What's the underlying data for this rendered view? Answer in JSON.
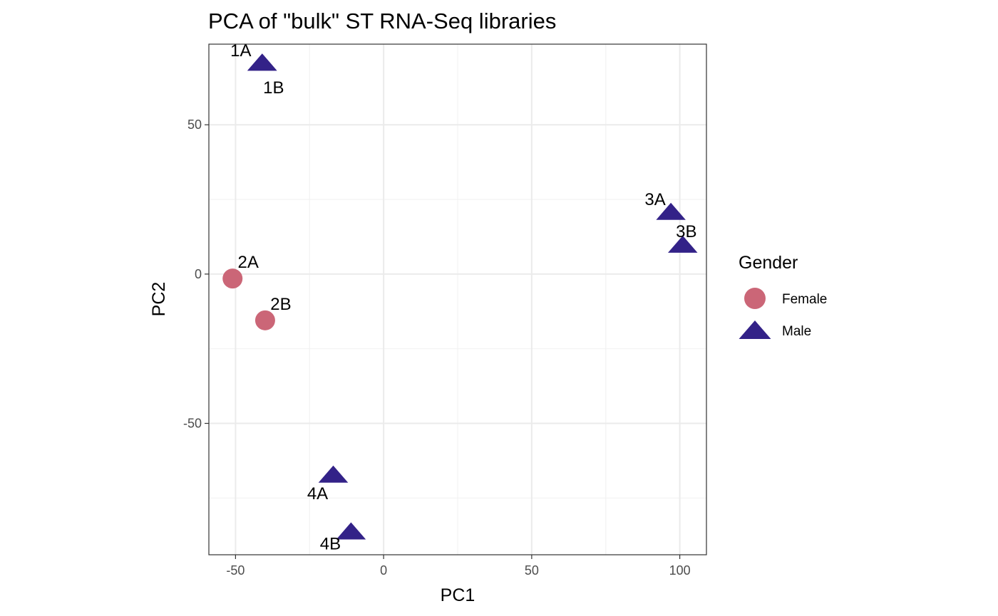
{
  "chart_data": {
    "type": "scatter",
    "title": "PCA of \"bulk\" ST RNA-Seq libraries",
    "xlabel": "PC1",
    "ylabel": "PC2",
    "xlim": [
      -59,
      109
    ],
    "ylim": [
      -94,
      77
    ],
    "x_ticks": [
      -50,
      0,
      50,
      100
    ],
    "x_tick_labels": [
      "-50",
      "0",
      "50",
      "100"
    ],
    "y_ticks": [
      -50,
      0,
      50
    ],
    "y_tick_labels": [
      "-50",
      "0",
      "50"
    ],
    "x_minor_gridlines": [
      -25,
      25,
      75
    ],
    "y_minor_gridlines": [
      -75,
      -25,
      25
    ],
    "grid": true,
    "legend": {
      "title": "Gender",
      "position": "right",
      "entries": [
        {
          "label": "Female",
          "shape": "circle",
          "color": "#cb6677"
        },
        {
          "label": "Male",
          "shape": "triangle",
          "color": "#332288"
        }
      ]
    },
    "series": [
      {
        "name": "Female",
        "shape": "circle",
        "color": "#cb6677",
        "points": [
          {
            "label": "2A",
            "x": -51,
            "y": -1.5
          },
          {
            "label": "2B",
            "x": -40,
            "y": -15.5
          }
        ]
      },
      {
        "name": "Male",
        "shape": "triangle",
        "color": "#332288",
        "points": [
          {
            "label": "1A",
            "x": -41,
            "y": 71
          },
          {
            "label": "1B",
            "x": -41,
            "y": 71
          },
          {
            "label": "3A",
            "x": 97,
            "y": 21
          },
          {
            "label": "3B",
            "x": 101,
            "y": 10
          },
          {
            "label": "4A",
            "x": -17,
            "y": -67
          },
          {
            "label": "4B",
            "x": -11,
            "y": -86
          }
        ]
      }
    ]
  }
}
